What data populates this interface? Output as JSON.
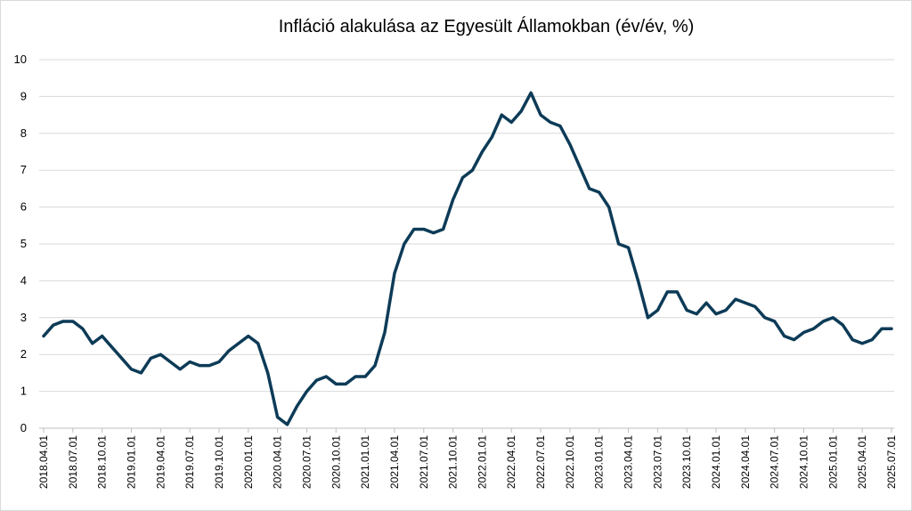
{
  "chart_data": {
    "type": "line",
    "title": "Infláció alakulása az Egyesült Államokban (év/év, %)",
    "ylim": [
      0,
      10
    ],
    "yticks": [
      0,
      1,
      2,
      3,
      4,
      5,
      6,
      7,
      8,
      9,
      10
    ],
    "grid": true,
    "legend": "none",
    "line_color": "#0d3b57",
    "x_tick_labels": [
      "2018.04.01",
      "2018.07.01",
      "2018.10.01",
      "2019.01.01",
      "2019.04.01",
      "2019.07.01",
      "2019.10.01",
      "2020.01.01",
      "2020.04.01",
      "2020.07.01",
      "2020.10.01",
      "2021.01.01",
      "2021.04.01",
      "2021.07.01",
      "2021.10.01",
      "2022.01.01",
      "2022.04.01",
      "2022.07.01",
      "2022.10.01",
      "2023.01.01",
      "2023.04.01",
      "2023.07.01",
      "2023.10.01",
      "2024.01.01",
      "2024.04.01",
      "2024.07.01",
      "2024.10.01",
      "2025.01.01",
      "2025.04.01",
      "2025.07.01"
    ],
    "series": [
      {
        "values": [
          2.5,
          2.8,
          2.9,
          2.9,
          2.7,
          2.3,
          2.5,
          2.2,
          1.9,
          1.6,
          1.5,
          1.9,
          2.0,
          1.8,
          1.6,
          1.8,
          1.7,
          1.7,
          1.8,
          2.1,
          2.3,
          2.5,
          2.3,
          1.5,
          0.3,
          0.1,
          0.6,
          1.0,
          1.3,
          1.4,
          1.2,
          1.2,
          1.4,
          1.4,
          1.7,
          2.6,
          4.2,
          5.0,
          5.4,
          5.4,
          5.3,
          5.4,
          6.2,
          6.8,
          7.0,
          7.5,
          7.9,
          8.5,
          8.3,
          8.6,
          9.1,
          8.5,
          8.3,
          8.2,
          7.7,
          7.1,
          6.5,
          6.4,
          6.0,
          5.0,
          4.9,
          4.0,
          3.0,
          3.2,
          3.7,
          3.7,
          3.2,
          3.1,
          3.4,
          3.1,
          3.2,
          3.5,
          3.4,
          3.3,
          3.0,
          2.9,
          2.5,
          2.4,
          2.6,
          2.7,
          2.9,
          3.0,
          2.8,
          2.4,
          2.3,
          2.4,
          2.7,
          2.7
        ]
      }
    ]
  }
}
